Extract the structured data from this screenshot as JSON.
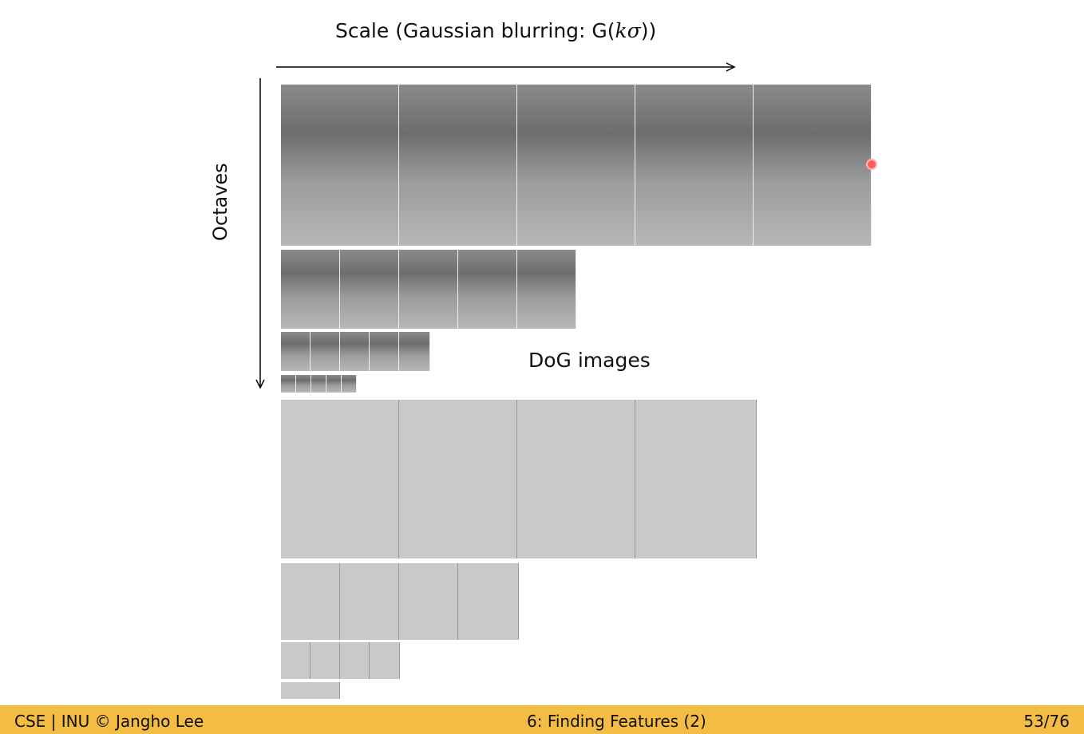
{
  "scale_title": {
    "prefix": "Scale (Gaussian blurring: G(",
    "math": "kσ",
    "suffix": "))"
  },
  "octaves_label": "Octaves",
  "dog_label": "DoG images",
  "footer": {
    "left": "CSE | INU © Jangho Lee",
    "center": "6: Finding Features (2)",
    "right": "53/76"
  },
  "colors": {
    "footer_bg": "#f3bc44",
    "laser_pointer": "#ff5b5b"
  },
  "pyramid": {
    "gaussian_rows": 4,
    "gaussian_images_per_octave": 5,
    "dog_rows": 4,
    "dog_images_per_octave": 4
  }
}
